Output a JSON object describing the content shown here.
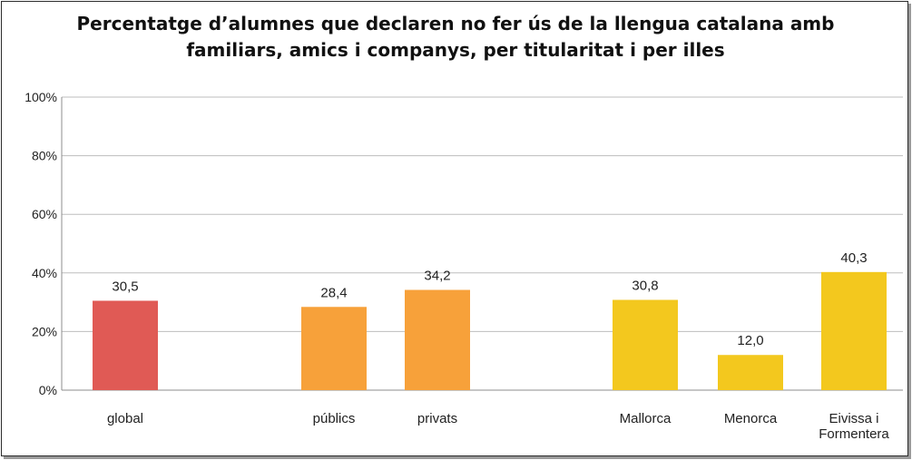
{
  "chart_data": {
    "type": "bar",
    "title": [
      "Percentatge d’alumnes que declaren no fer ús de la llengua catalana amb",
      "familiars, amics i companys, per titularitat i per illes"
    ],
    "xlabel": "",
    "ylabel": "",
    "ylim": [
      0,
      100
    ],
    "yticks": [
      "0%",
      "20%",
      "40%",
      "60%",
      "80%",
      "100%"
    ],
    "grid": true,
    "legend": "none",
    "categories": [
      {
        "label": [
          "global"
        ],
        "value": 30.5,
        "value_label": "30,5",
        "color": "#e05a55"
      },
      {
        "label": [
          "públics"
        ],
        "value": 28.4,
        "value_label": "28,4",
        "color": "#f7a13a"
      },
      {
        "label": [
          "privats"
        ],
        "value": 34.2,
        "value_label": "34,2",
        "color": "#f7a13a"
      },
      {
        "label": [
          "Mallorca"
        ],
        "value": 30.8,
        "value_label": "30,8",
        "color": "#f3c81e"
      },
      {
        "label": [
          "Menorca"
        ],
        "value": 12.0,
        "value_label": "12,0",
        "color": "#f3c81e"
      },
      {
        "label": [
          "Eivissa i",
          "Formentera"
        ],
        "value": 40.3,
        "value_label": "40,3",
        "color": "#f3c81e"
      }
    ]
  }
}
